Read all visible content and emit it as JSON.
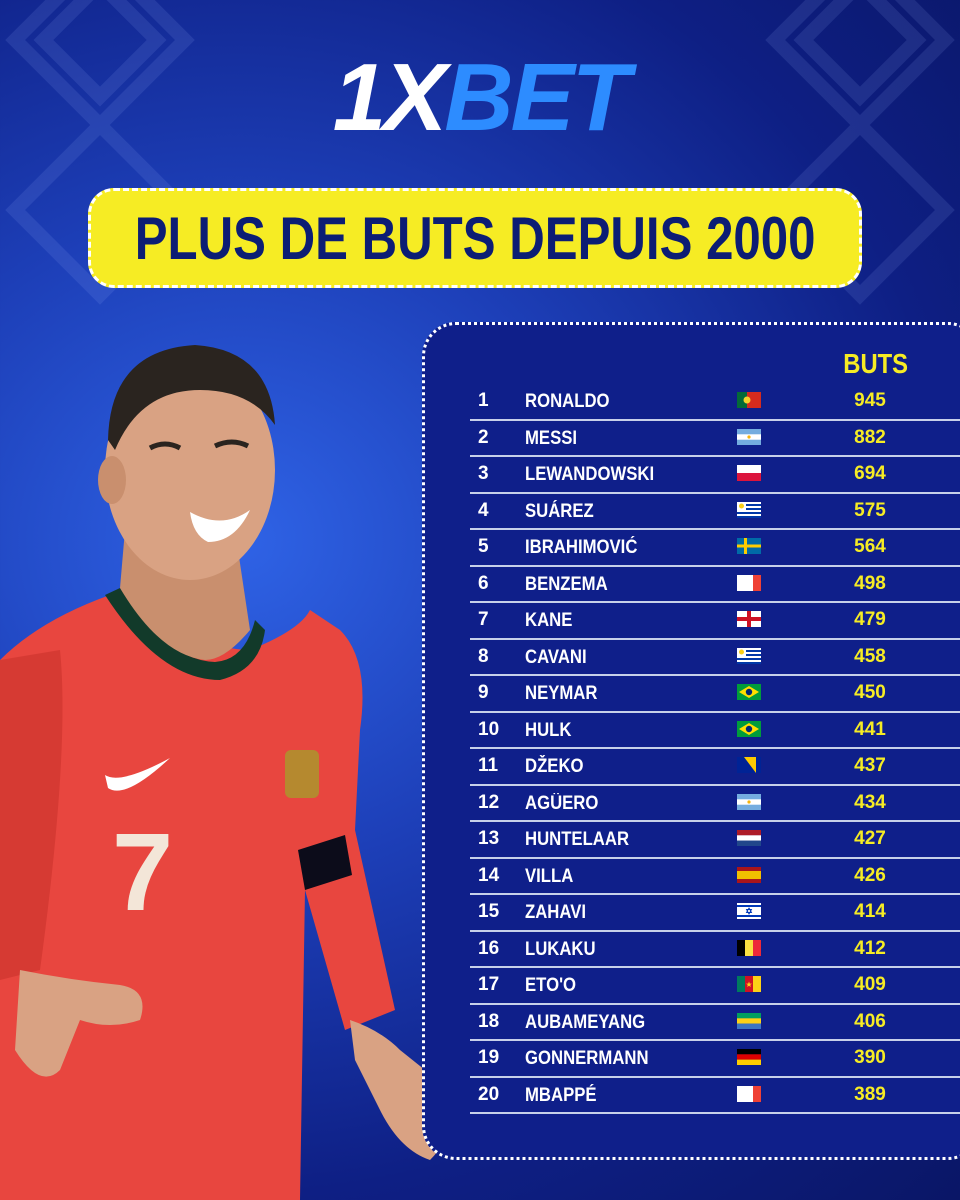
{
  "logo": {
    "part1": "1X",
    "part2": "BET"
  },
  "title": "PLUS DE BUTS DEPUIS 2000",
  "column_header": "BUTS",
  "player_image": {
    "shirt_number": "7"
  },
  "colors": {
    "yellow": "#f6ec24",
    "navy": "#0c1d74",
    "blue_logo": "#2d8cff",
    "shirt_red": "#e8463f"
  },
  "rows": [
    {
      "rank": "1",
      "name": "RONALDO",
      "flag": "portugal",
      "goals": "945"
    },
    {
      "rank": "2",
      "name": "MESSI",
      "flag": "argentina",
      "goals": "882"
    },
    {
      "rank": "3",
      "name": "LEWANDOWSKI",
      "flag": "poland",
      "goals": "694"
    },
    {
      "rank": "4",
      "name": "SUÁREZ",
      "flag": "uruguay",
      "goals": "575"
    },
    {
      "rank": "5",
      "name": "IBRAHIMOVIĆ",
      "flag": "sweden",
      "goals": "564"
    },
    {
      "rank": "6",
      "name": "BENZEMA",
      "flag": "france",
      "goals": "498"
    },
    {
      "rank": "7",
      "name": "KANE",
      "flag": "england",
      "goals": "479"
    },
    {
      "rank": "8",
      "name": "CAVANI",
      "flag": "uruguay",
      "goals": "458"
    },
    {
      "rank": "9",
      "name": "NEYMAR",
      "flag": "brazil",
      "goals": "450"
    },
    {
      "rank": "10",
      "name": "HULK",
      "flag": "brazil",
      "goals": "441"
    },
    {
      "rank": "11",
      "name": "DŽEKO",
      "flag": "bosnia",
      "goals": "437"
    },
    {
      "rank": "12",
      "name": "AGÜERO",
      "flag": "argentina",
      "goals": "434"
    },
    {
      "rank": "13",
      "name": "HUNTELAAR",
      "flag": "netherlands",
      "goals": "427"
    },
    {
      "rank": "14",
      "name": "VILLA",
      "flag": "spain",
      "goals": "426"
    },
    {
      "rank": "15",
      "name": "ZAHAVI",
      "flag": "israel",
      "goals": "414"
    },
    {
      "rank": "16",
      "name": "LUKAKU",
      "flag": "belgium",
      "goals": "412"
    },
    {
      "rank": "17",
      "name": "ETO'O",
      "flag": "cameroon",
      "goals": "409"
    },
    {
      "rank": "18",
      "name": "AUBAMEYANG",
      "flag": "gabon",
      "goals": "406"
    },
    {
      "rank": "19",
      "name": "GONNERMANN",
      "flag": "germany",
      "goals": "390"
    },
    {
      "rank": "20",
      "name": "MBAPPÉ",
      "flag": "france",
      "goals": "389"
    }
  ]
}
